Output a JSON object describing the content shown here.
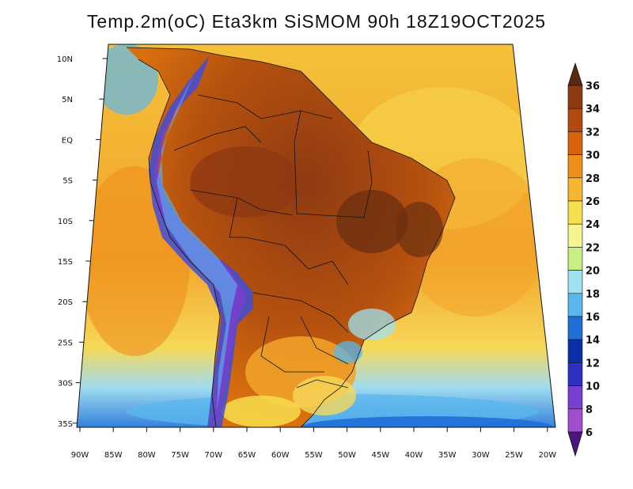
{
  "title": "Temp.2m(oC) Eta3km SiSMOM 90h 18Z19OCT2025",
  "map": {
    "lat_ticks": [
      "10N",
      "5N",
      "EQ",
      "5S",
      "10S",
      "15S",
      "20S",
      "25S",
      "30S",
      "35S"
    ],
    "lon_ticks": [
      "90W",
      "85W",
      "80W",
      "75W",
      "70W",
      "65W",
      "60W",
      "55W",
      "50W",
      "45W",
      "40W",
      "35W",
      "30W",
      "25W",
      "20W"
    ]
  },
  "colorbar": {
    "labels": [
      "36",
      "34",
      "32",
      "30",
      "28",
      "26",
      "24",
      "22",
      "20",
      "18",
      "16",
      "14",
      "12",
      "10",
      "8",
      "6"
    ],
    "colors": [
      "#6b2f10",
      "#8e3a12",
      "#b24a10",
      "#d9620c",
      "#ef8f1a",
      "#f6b632",
      "#f7de4c",
      "#f5f590",
      "#c9ee86",
      "#9fe2f2",
      "#5ab7ee",
      "#1f6fd8",
      "#0a2fa6",
      "#2e2fc4",
      "#7a3fd1",
      "#a24dd0",
      "#7a1fa0"
    ],
    "top_color": "#5a2a10",
    "bottom_color": "#4b1680"
  }
}
